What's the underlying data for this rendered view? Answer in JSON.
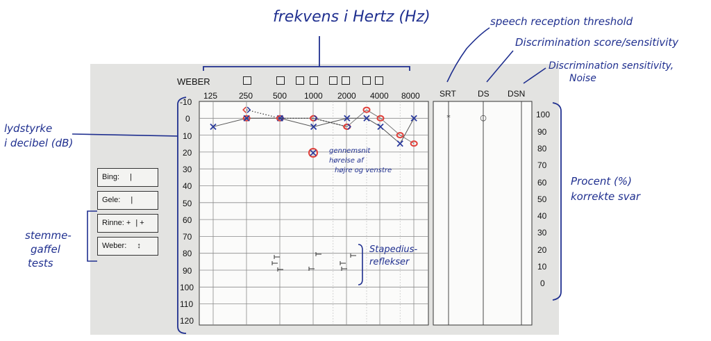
{
  "header": {
    "weber_label": "WEBER",
    "frequencies": [
      "125",
      "250",
      "500",
      "1000",
      "2000",
      "4000",
      "8000"
    ],
    "speech_columns": [
      "SRT",
      "DS",
      "DSN"
    ]
  },
  "db_ticks": [
    "-10",
    "0",
    "10",
    "20",
    "30",
    "40",
    "50",
    "60",
    "70",
    "80",
    "90",
    "100",
    "110",
    "120"
  ],
  "percent_ticks": [
    "100",
    "90",
    "80",
    "70",
    "60",
    "50",
    "40",
    "30",
    "20",
    "10",
    "0"
  ],
  "tuning_fork_tests": {
    "bing": "Bing:",
    "bing_mark": "|",
    "gele": "Gele:",
    "gele_mark": "|",
    "rinne": "Rinne: +",
    "rinne_mark": "|  +",
    "weber": "Weber:",
    "weber_mark": "↕"
  },
  "annotations": {
    "frequency": "frekvens i Hertz (Hz)",
    "srt": "speech reception threshold",
    "ds": "Discrimination score/sensitivity",
    "dsn_line1": "Discrimination sensitivity,",
    "dsn_line2": "Noise",
    "loudness_line1": "lydstyrke",
    "loudness_line2": "i decibel (dB)",
    "percent_line1": "Procent (%)",
    "percent_line2": "korrekte svar",
    "tuning_line1": "stemme-",
    "tuning_line2": "gaffel",
    "tuning_line3": "tests",
    "average_line1": "gennemsnit",
    "average_line2": "hørelse af",
    "average_line3": "højre og venstre",
    "stapedius_line1": "Stapedius-",
    "stapedius_line2": "reflekser"
  },
  "chart_data": {
    "type": "line",
    "x_axis": "frequency (Hz), log scale",
    "y_axis": "hearing level (dB), inverted",
    "ylim": [
      -10,
      120
    ],
    "series": [
      {
        "marker": "x",
        "color": "#2a3a9c",
        "x": [
          125,
          250,
          500,
          1000,
          2000,
          3000,
          4000,
          6000,
          8000
        ],
        "y": [
          5,
          0,
          0,
          5,
          0,
          0,
          5,
          15,
          0
        ]
      },
      {
        "marker": "circle",
        "color": "#e0403a",
        "x": [
          250,
          500,
          1000,
          2000,
          3000,
          4000,
          6000,
          8000
        ],
        "y": [
          0,
          0,
          0,
          5,
          -5,
          0,
          10,
          15
        ]
      },
      {
        "marker": "bracket",
        "color": "#2a3a9c",
        "x": [
          250,
          500,
          1000,
          2000
        ],
        "y": [
          -5,
          0,
          0,
          5
        ]
      }
    ],
    "srt_marks": [
      "*",
      "○"
    ],
    "average_symbol": "⊗"
  }
}
